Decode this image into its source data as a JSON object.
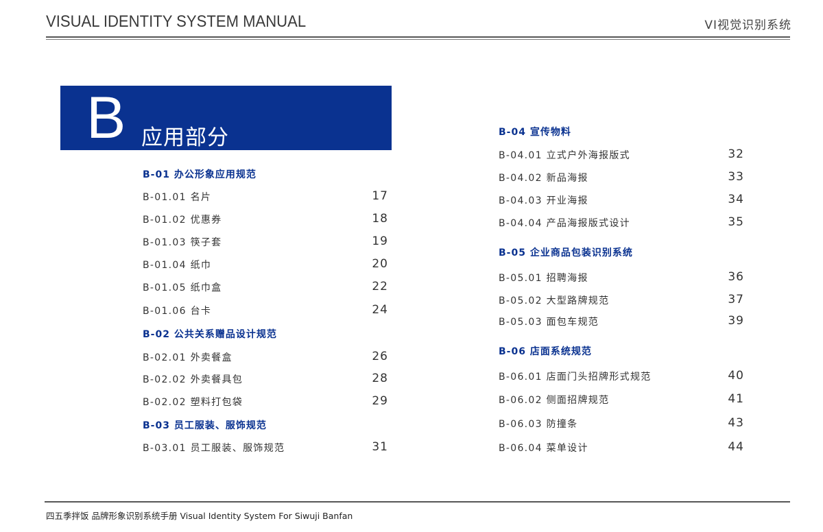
{
  "header": {
    "title": "VISUAL IDENTITY SYSTEM MANUAL",
    "right": "VI视觉识别系统"
  },
  "banner": {
    "letter": "B",
    "title": "应用部分"
  },
  "left": [
    {
      "section": "B-01 办公形象应用规范",
      "items": [
        [
          "B-01.01 名片",
          "17"
        ],
        [
          "B-01.02 优惠券",
          "18"
        ],
        [
          "B-01.03 筷子套",
          "19"
        ],
        [
          "B-01.04 纸巾",
          "20"
        ],
        [
          "B-01.05 纸巾盒",
          "22"
        ],
        [
          "B-01.06 台卡",
          "24"
        ]
      ]
    },
    {
      "section": "B-02 公共关系赠品设计规范",
      "items": [
        [
          "B-02.01 外卖餐盒",
          "26"
        ],
        [
          "B-02.02 外卖餐具包",
          "28"
        ],
        [
          "B-02.02 塑料打包袋",
          "29"
        ]
      ]
    },
    {
      "section": "B-03 员工服装、服饰规范",
      "items": [
        [
          "B-03.01 员工服装、服饰规范",
          "31"
        ]
      ]
    }
  ],
  "right": [
    {
      "section": "B-04 宣传物料",
      "items": [
        [
          "B-04.01 立式户外海报版式",
          "32"
        ],
        [
          "B-04.02 新品海报",
          "33"
        ],
        [
          "B-04.03 开业海报",
          "34"
        ],
        [
          "B-04.04 产品海报版式设计",
          "35"
        ]
      ]
    },
    {
      "section": "B-05 企业商品包装识别系统",
      "items": [
        [
          "B-05.01 招聘海报",
          "36"
        ],
        [
          "B-05.02 大型路牌规范",
          "37"
        ],
        [
          "B-05.03 面包车规范",
          "39"
        ]
      ]
    },
    {
      "section": "B-06 店面系统规范",
      "items": [
        [
          "B-06.01 店面门头招牌形式规范",
          "40"
        ],
        [
          "B-06.02 侧面招牌规范",
          "41"
        ],
        [
          "B-06.03 防撞条",
          "43"
        ],
        [
          "B-06.04 菜单设计",
          "44"
        ]
      ]
    }
  ],
  "footer": "四五季拌饭 品牌形象识别系统手册  Visual Identity System For Siwuji Banfan",
  "colors": {
    "accent": "#0a3290"
  }
}
